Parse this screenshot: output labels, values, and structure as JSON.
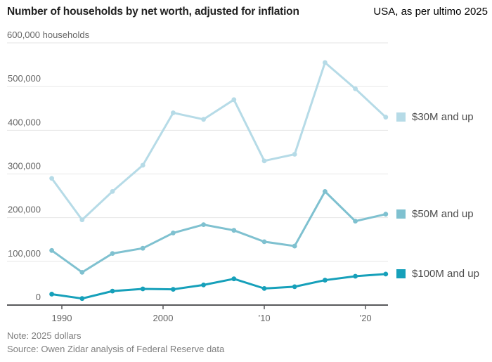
{
  "header": {
    "title": "Number of households by net worth, adjusted for inflation",
    "annotation": "USA, as per ultimo 2025"
  },
  "notes": {
    "note": "Note: 2025 dollars",
    "source": "Source: Owen Zidar analysis of Federal Reserve data"
  },
  "colors": {
    "series_30m": "#b6dbe7",
    "series_50m": "#7fc1d0",
    "series_100m": "#16a0ba",
    "grid": "#e6e6e6",
    "axis": "#58595b",
    "tick_text": "#666666"
  },
  "chart_data": {
    "type": "line",
    "title": "Number of households by net worth, adjusted for inflation",
    "xlabel": "",
    "ylabel": "households",
    "x": [
      1989,
      1992,
      1995,
      1998,
      2001,
      2004,
      2007,
      2010,
      2013,
      2016,
      2019,
      2022
    ],
    "xlim": [
      1988.5,
      2023
    ],
    "ylim": [
      0,
      600000
    ],
    "grid": "horizontal",
    "legend_position": "right, labels aligned with line ends",
    "xticks": [
      {
        "value": 1990,
        "label": "1990"
      },
      {
        "value": 2000,
        "label": "2000"
      },
      {
        "value": 2010,
        "label": "’10"
      },
      {
        "value": 2020,
        "label": "’20"
      }
    ],
    "yticks": [
      {
        "value": 0,
        "label": "0"
      },
      {
        "value": 100000,
        "label": "100,000"
      },
      {
        "value": 200000,
        "label": "200,000"
      },
      {
        "value": 300000,
        "label": "300,000"
      },
      {
        "value": 400000,
        "label": "400,000"
      },
      {
        "value": 500000,
        "label": "500,000"
      },
      {
        "value": 600000,
        "label": "600,000 households"
      }
    ],
    "series": [
      {
        "name": "$30M and up",
        "color": "#b6dbe7",
        "values": [
          290000,
          195000,
          260000,
          320000,
          440000,
          425000,
          470000,
          330000,
          345000,
          555000,
          495000,
          430000
        ]
      },
      {
        "name": "$50M and up",
        "color": "#7fc1d0",
        "values": [
          125000,
          75000,
          118000,
          130000,
          165000,
          184000,
          171000,
          145000,
          135000,
          260000,
          192000,
          208000
        ]
      },
      {
        "name": "$100M and up",
        "color": "#16a0ba",
        "values": [
          25000,
          15000,
          32000,
          37000,
          36000,
          46000,
          60000,
          38000,
          42000,
          57000,
          66000,
          71000
        ]
      }
    ]
  }
}
